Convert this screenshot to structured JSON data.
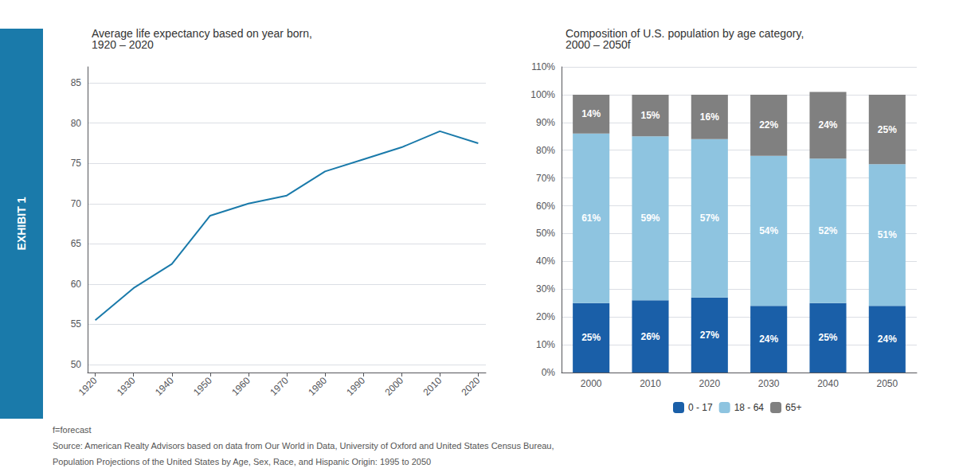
{
  "chart_data": [
    {
      "type": "line",
      "title": "Average life expectancy based on year born,\n1920 – 2020",
      "x": [
        1920,
        1930,
        1940,
        1950,
        1960,
        1970,
        1980,
        1990,
        2000,
        2010,
        2020
      ],
      "values": [
        55.5,
        59.5,
        62.5,
        68.5,
        70.0,
        71.0,
        74.0,
        75.5,
        77.0,
        79.0,
        77.5
      ],
      "color": "#1a7aaa",
      "xlim": [
        1918,
        2022
      ],
      "xticks": [
        1920,
        1930,
        1940,
        1950,
        1960,
        1970,
        1980,
        1990,
        2000,
        2010,
        2020
      ],
      "ylim": [
        49,
        87
      ],
      "yticks": [
        50,
        55,
        60,
        65,
        70,
        75,
        80,
        85
      ],
      "grid": true,
      "annotations": [
        "EXHIBIT 1"
      ]
    },
    {
      "type": "bar",
      "title": "Composition of U.S. population by age category,\n2000 – 2050f",
      "categories": [
        "2000",
        "2010",
        "2020",
        "2030",
        "2040",
        "2050"
      ],
      "series": [
        {
          "name": "0 - 17",
          "color": "#1a5fa8",
          "values": [
            25,
            26,
            27,
            24,
            25,
            24
          ],
          "value_labels": [
            "25%",
            "26%",
            "27%",
            "24%",
            "25%",
            "24%"
          ]
        },
        {
          "name": "18 - 64",
          "color": "#8ec4e0",
          "values": [
            61,
            59,
            57,
            54,
            52,
            51
          ],
          "value_labels": [
            "61%",
            "59%",
            "57%",
            "54%",
            "52%",
            "51%"
          ]
        },
        {
          "name": "65+",
          "color": "#808080",
          "values": [
            14,
            15,
            16,
            22,
            24,
            25
          ],
          "value_labels": [
            "14%",
            "15%",
            "16%",
            "22%",
            "24%",
            "25%"
          ]
        }
      ],
      "stacked": true,
      "data_labels": true,
      "ylim": [
        0,
        110
      ],
      "yticks": [
        {
          "value": 0,
          "label": "0%"
        },
        {
          "value": 10,
          "label": "10%"
        },
        {
          "value": 20,
          "label": "20%"
        },
        {
          "value": 30,
          "label": "30%"
        },
        {
          "value": 40,
          "label": "40%"
        },
        {
          "value": 50,
          "label": "50%"
        },
        {
          "value": 60,
          "label": "60%"
        },
        {
          "value": 70,
          "label": "70%"
        },
        {
          "value": 80,
          "label": "80%"
        },
        {
          "value": 90,
          "label": "90%"
        },
        {
          "value": 100,
          "label": "100%"
        },
        {
          "value": 110,
          "label": "110%"
        }
      ],
      "grid": true,
      "legend": "bottom",
      "annotations": [
        "f=forecast",
        "Source: American Realty Advisors based on data from Our World in Data, University of Oxford and United States Census Bureau,",
        "Population Projections of the United States by Age, Sex, Race, and Hispanic Origin: 1995 to 2050"
      ]
    }
  ]
}
